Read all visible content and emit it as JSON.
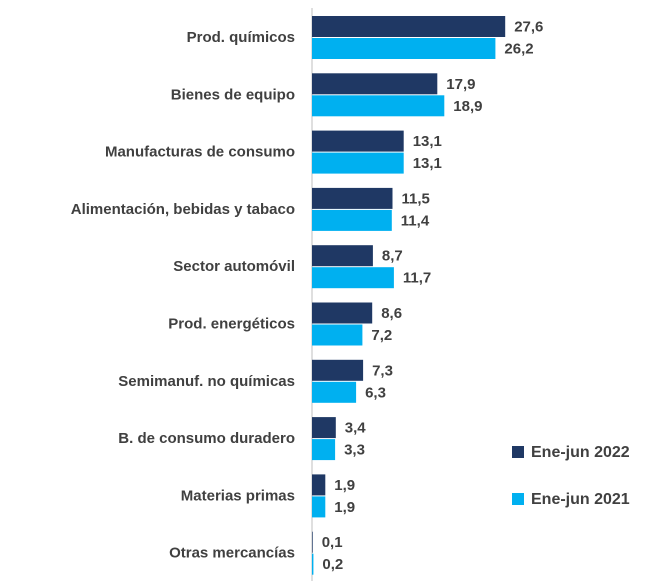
{
  "chart_data": {
    "type": "bar",
    "orientation": "horizontal",
    "categories": [
      "Prod. químicos",
      "Bienes de equipo",
      "Manufacturas de consumo",
      "Alimentación, bebidas y tabaco",
      "Sector automóvil",
      "Prod. energéticos",
      "Semimanuf. no químicas",
      "B. de consumo duradero",
      "Materias primas",
      "Otras mercancías"
    ],
    "series": [
      {
        "name": "Ene-jun 2022",
        "color": "#1f3864",
        "values": [
          27.6,
          17.9,
          13.1,
          11.5,
          8.7,
          8.6,
          7.3,
          3.4,
          1.9,
          0.1
        ],
        "value_labels": [
          "27,6",
          "17,9",
          "13,1",
          "11,5",
          "8,7",
          "8,6",
          "7,3",
          "3,4",
          "1,9",
          "0,1"
        ]
      },
      {
        "name": "Ene-jun 2021",
        "color": "#00b0f0",
        "values": [
          26.2,
          18.9,
          13.1,
          11.4,
          11.7,
          7.2,
          6.3,
          3.3,
          1.9,
          0.2
        ],
        "value_labels": [
          "26,2",
          "18,9",
          "13,1",
          "11,4",
          "11,7",
          "7,2",
          "6,3",
          "3,3",
          "1,9",
          "0,2"
        ]
      }
    ],
    "legend": "right"
  }
}
